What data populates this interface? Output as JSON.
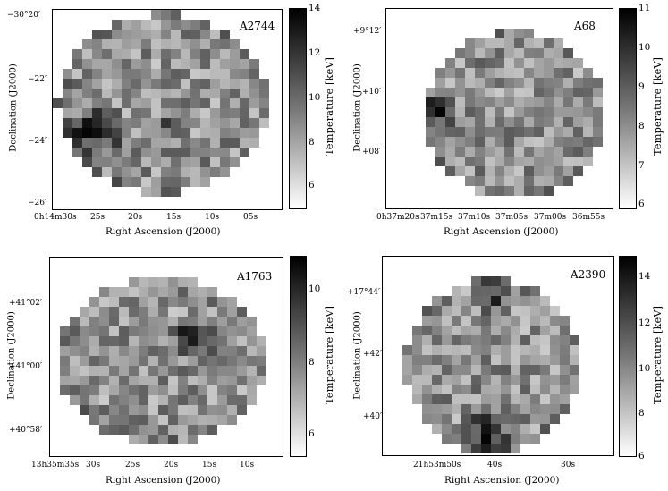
{
  "panels": [
    {
      "name": "A2744",
      "y_axis_label": "Declination (J2000)",
      "x_axis_label": "Right Ascension (J2000)",
      "y_ticks": [
        "−30°20′",
        "−22′",
        "−24′",
        "−26′"
      ],
      "x_ticks": [
        "0h14m30s",
        "25s",
        "20s",
        "15s",
        "10s",
        "05s"
      ],
      "colorbar_label": "Temperature [keV]",
      "colorbar_ticks": [
        "14",
        "12",
        "10",
        "8",
        "6"
      ]
    },
    {
      "name": "A68",
      "y_axis_label": "Declination (J2000)",
      "x_axis_label": "Right Ascension (J2000)",
      "y_ticks": [
        "+9°12′",
        "+10′",
        "+08′"
      ],
      "x_ticks": [
        "0h37m20s",
        "37m15s",
        "37m10s",
        "37m05s",
        "37m00s",
        "36m55s"
      ],
      "colorbar_label": "Temperature [keV]",
      "colorbar_ticks": [
        "11",
        "10",
        "9",
        "8",
        "7",
        "6"
      ]
    },
    {
      "name": "A1763",
      "y_axis_label": "Declination (J2000)",
      "x_axis_label": "Right Ascension (J2000)",
      "y_ticks": [
        "+41°02′",
        "+41°00′",
        "+40°58′"
      ],
      "x_ticks": [
        "13h35m35s",
        "30s",
        "25s",
        "20s",
        "15s",
        "10s"
      ],
      "colorbar_label": "Temperature [keV]",
      "colorbar_ticks": [
        "10",
        "8",
        "6"
      ]
    },
    {
      "name": "A2390",
      "y_axis_label": "Declination (J2000)",
      "x_axis_label": "Right Ascension (J2000)",
      "y_ticks": [
        "+17°44′",
        "+42′",
        "+40′"
      ],
      "x_ticks": [
        "21h53m50s",
        "40s",
        "30s"
      ],
      "colorbar_label": "Temperature [keV]",
      "colorbar_ticks": [
        "14",
        "12",
        "10",
        "8",
        "6"
      ]
    }
  ]
}
